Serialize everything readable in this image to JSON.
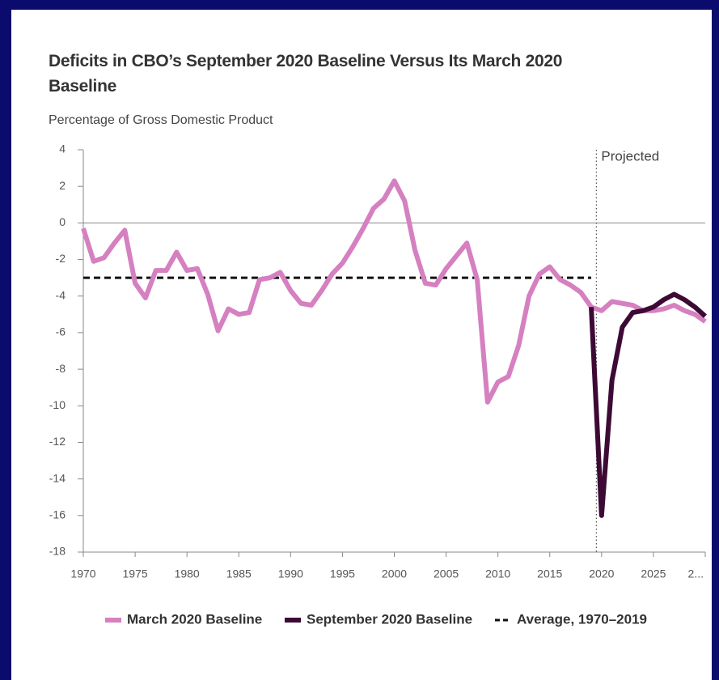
{
  "chart_data": {
    "type": "line",
    "title": "Deficits in CBO’s September 2020 Baseline Versus Its March 2020 Baseline",
    "subtitle": "Percentage of Gross Domestic Product",
    "xlim": [
      1970,
      2030
    ],
    "xticks": [
      1970,
      1975,
      1980,
      1985,
      1990,
      1995,
      2000,
      2005,
      2010,
      2015,
      2020,
      2025,
      {
        "value": 2030,
        "label": "2..."
      }
    ],
    "ylim": [
      -18,
      4
    ],
    "yticks": [
      -18,
      -16,
      -14,
      -12,
      -10,
      -8,
      -6,
      -4,
      -2,
      0,
      2,
      4
    ],
    "projected_line": {
      "x": 2019.5,
      "label": "Projected"
    },
    "series": [
      {
        "name": "March 2020 Baseline",
        "color": "#d580c0",
        "dashed": false,
        "x": [
          1970,
          1971,
          1972,
          1973,
          1974,
          1975,
          1976,
          1977,
          1978,
          1979,
          1980,
          1981,
          1982,
          1983,
          1984,
          1985,
          1986,
          1987,
          1988,
          1989,
          1990,
          1991,
          1992,
          1993,
          1994,
          1995,
          1996,
          1997,
          1998,
          1999,
          2000,
          2001,
          2002,
          2003,
          2004,
          2005,
          2006,
          2007,
          2008,
          2009,
          2010,
          2011,
          2012,
          2013,
          2014,
          2015,
          2016,
          2017,
          2018,
          2019,
          2020,
          2021,
          2022,
          2023,
          2024,
          2025,
          2026,
          2027,
          2028,
          2029,
          2030
        ],
        "values": [
          -0.3,
          -2.1,
          -1.9,
          -1.1,
          -0.4,
          -3.3,
          -4.1,
          -2.6,
          -2.6,
          -1.6,
          -2.6,
          -2.5,
          -3.9,
          -5.9,
          -4.7,
          -5.0,
          -4.9,
          -3.1,
          -3.0,
          -2.7,
          -3.7,
          -4.4,
          -4.5,
          -3.7,
          -2.8,
          -2.2,
          -1.3,
          -0.3,
          0.8,
          1.3,
          2.3,
          1.2,
          -1.5,
          -3.3,
          -3.4,
          -2.5,
          -1.8,
          -1.1,
          -3.1,
          -9.8,
          -8.7,
          -8.4,
          -6.7,
          -4.0,
          -2.8,
          -2.4,
          -3.1,
          -3.4,
          -3.8,
          -4.6,
          -4.8,
          -4.3,
          -4.4,
          -4.5,
          -4.8,
          -4.8,
          -4.7,
          -4.5,
          -4.8,
          -5.0,
          -5.4
        ]
      },
      {
        "name": "September 2020 Baseline",
        "color": "#3d0a35",
        "dashed": false,
        "x": [
          2019,
          2020,
          2021,
          2022,
          2023,
          2024,
          2025,
          2026,
          2027,
          2028,
          2029,
          2030
        ],
        "values": [
          -4.6,
          -16.0,
          -8.6,
          -5.7,
          -4.9,
          -4.8,
          -4.6,
          -4.2,
          -3.9,
          -4.2,
          -4.6,
          -5.1
        ]
      },
      {
        "name": "Average, 1970–2019",
        "color": "#111111",
        "dashed": true,
        "x": [
          1970,
          2019
        ],
        "values": [
          -3.0,
          -3.0
        ]
      }
    ]
  }
}
